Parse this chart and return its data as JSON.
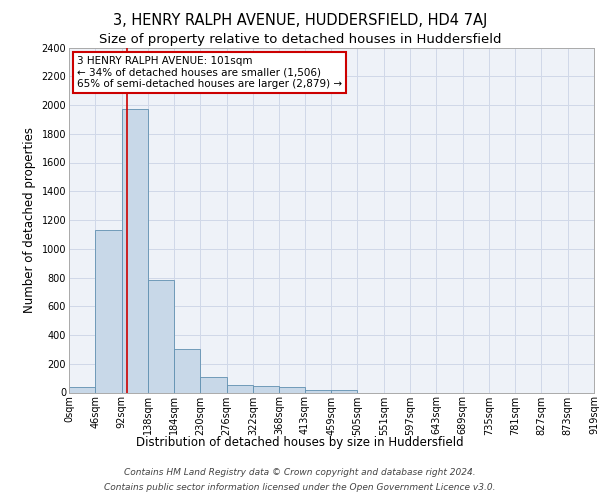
{
  "title": "3, HENRY RALPH AVENUE, HUDDERSFIELD, HD4 7AJ",
  "subtitle": "Size of property relative to detached houses in Huddersfield",
  "xlabel": "Distribution of detached houses by size in Huddersfield",
  "ylabel": "Number of detached properties",
  "bin_edges": [
    0,
    46,
    92,
    138,
    184,
    230,
    276,
    322,
    368,
    413,
    459,
    505,
    551,
    597,
    643,
    689,
    735,
    781,
    827,
    873,
    919
  ],
  "bar_heights": [
    40,
    1130,
    1970,
    780,
    300,
    110,
    50,
    45,
    35,
    20,
    20,
    0,
    0,
    0,
    0,
    0,
    0,
    0,
    0,
    0
  ],
  "bar_color": "#c8d8e8",
  "bar_edgecolor": "#6090b0",
  "grid_color": "#d0d8e8",
  "bg_color": "#eef2f8",
  "property_size": 101,
  "red_line_color": "#cc0000",
  "annotation_text": "3 HENRY RALPH AVENUE: 101sqm\n← 34% of detached houses are smaller (1,506)\n65% of semi-detached houses are larger (2,879) →",
  "annotation_box_color": "#ffffff",
  "annotation_border_color": "#cc0000",
  "ylim": [
    0,
    2400
  ],
  "yticks": [
    0,
    200,
    400,
    600,
    800,
    1000,
    1200,
    1400,
    1600,
    1800,
    2000,
    2200,
    2400
  ],
  "footer_line1": "Contains HM Land Registry data © Crown copyright and database right 2024.",
  "footer_line2": "Contains public sector information licensed under the Open Government Licence v3.0.",
  "title_fontsize": 10.5,
  "subtitle_fontsize": 9.5,
  "xlabel_fontsize": 8.5,
  "ylabel_fontsize": 8.5,
  "tick_fontsize": 7,
  "footer_fontsize": 6.5,
  "annotation_fontsize": 7.5
}
